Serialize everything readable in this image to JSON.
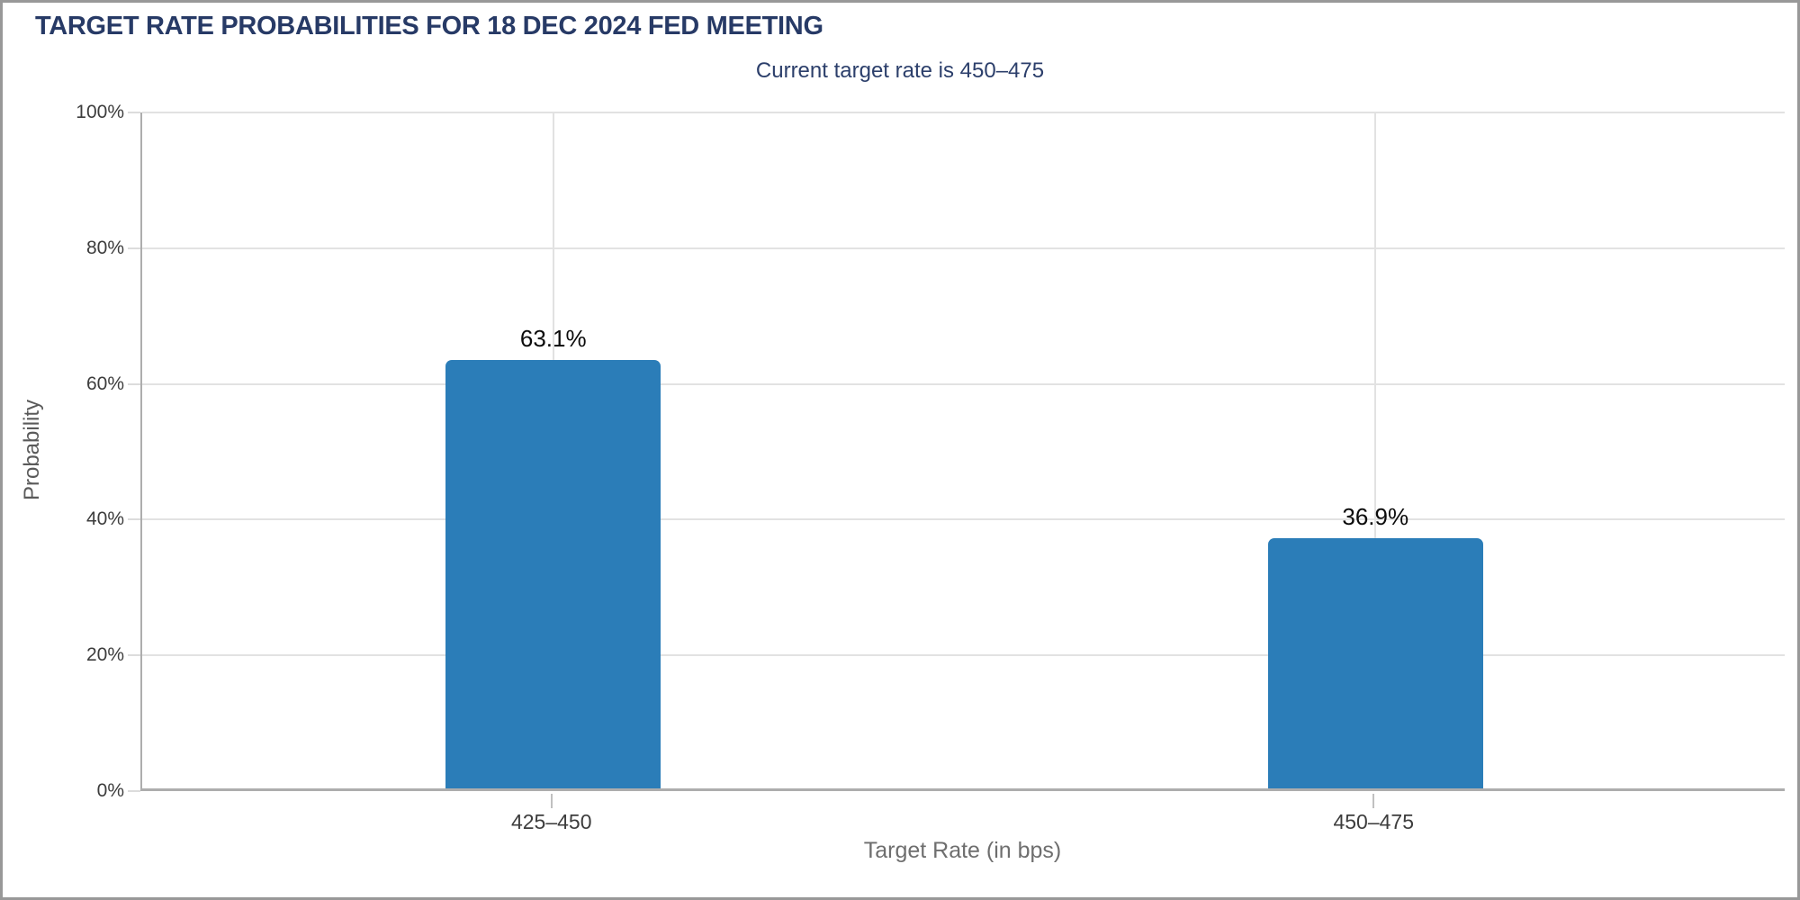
{
  "chart_data": {
    "type": "bar",
    "title": "TARGET RATE PROBABILITIES FOR 18 DEC 2024 FED MEETING",
    "subtitle": "Current target rate is 450–475",
    "categories": [
      "425–450",
      "450–475"
    ],
    "values": [
      63.1,
      36.9
    ],
    "value_labels": [
      "63.1%",
      "36.9%"
    ],
    "xlabel": "Target Rate (in bps)",
    "ylabel": "Probability",
    "ylim": [
      0,
      100
    ],
    "yticks": [
      0,
      20,
      40,
      60,
      80,
      100
    ],
    "ytick_labels": [
      "0%",
      "20%",
      "40%",
      "60%",
      "80%",
      "100%"
    ],
    "grid": true,
    "legend": "none",
    "colors": {
      "bar": "#2b7db8",
      "title": "#273a66",
      "subtitle": "#2c3f6b",
      "axis_line": "#adadad",
      "gridline": "#e2e2e2",
      "tick_label": "#3d3d3d",
      "value_label": "#0b0b0b",
      "axis_title": "#6e6e6e",
      "frame_border": "#989898",
      "background": "#ffffff"
    }
  }
}
